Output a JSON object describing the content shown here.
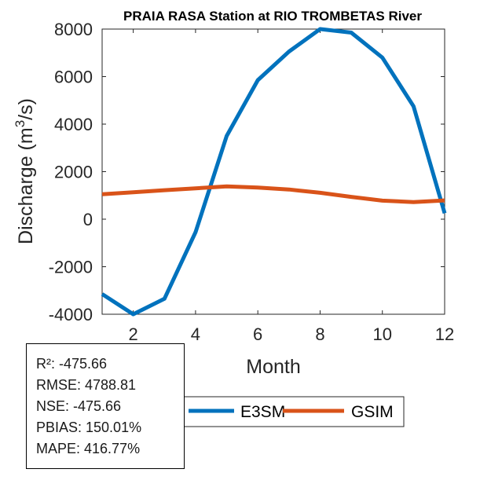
{
  "chart_data": {
    "type": "line",
    "title": "PRAIA RASA  Station at  RIO TROMBETAS  River",
    "xlabel": "Month",
    "ylabel": "Discharge (m³/s)",
    "ylabel_parts": {
      "before": "Discharge (m",
      "sup": "3",
      "after": "/s)"
    },
    "xlim": [
      1,
      12
    ],
    "ylim": [
      -4000,
      8000
    ],
    "xticks": [
      2,
      4,
      6,
      8,
      10,
      12
    ],
    "yticks": [
      -4000,
      -2000,
      0,
      2000,
      4000,
      6000,
      8000
    ],
    "x": [
      1,
      2,
      3,
      4,
      5,
      6,
      7,
      8,
      9,
      10,
      11,
      12
    ],
    "series": [
      {
        "name": "E3SM",
        "color": "#0072BD",
        "values": [
          -3150,
          -4000,
          -3350,
          -550,
          3500,
          5850,
          7050,
          8000,
          7850,
          6800,
          4750,
          250
        ]
      },
      {
        "name": "GSIM",
        "color": "#D95319",
        "values": [
          1050,
          1130,
          1220,
          1300,
          1380,
          1330,
          1250,
          1110,
          940,
          780,
          720,
          790
        ]
      }
    ],
    "legend": [
      "E3SM",
      "GSIM"
    ],
    "grid": false
  },
  "stats": [
    "R²: -475.66",
    "RMSE: 4788.81",
    "NSE: -475.66",
    "PBIAS: 150.01%",
    "MAPE: 416.77%"
  ]
}
